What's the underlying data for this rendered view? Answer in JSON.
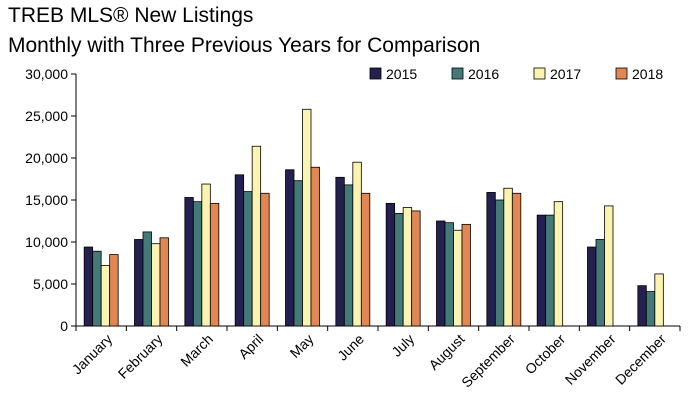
{
  "chart_data": {
    "type": "bar",
    "title": "TREB MLS® New Listings",
    "subtitle": "Monthly with Three Previous Years for Comparison",
    "xlabel": "",
    "ylabel": "",
    "ylim": [
      0,
      30000
    ],
    "yticks": [
      "0",
      "5,000",
      "10,000",
      "15,000",
      "20,000",
      "25,000",
      "30,000"
    ],
    "categories": [
      "January",
      "February",
      "March",
      "April",
      "May",
      "June",
      "July",
      "August",
      "September",
      "October",
      "November",
      "December"
    ],
    "series": [
      {
        "name": "2015",
        "color": "#24204f",
        "values": [
          9400,
          10300,
          15300,
          18000,
          18600,
          17700,
          14600,
          12500,
          15900,
          13200,
          9400,
          4800
        ]
      },
      {
        "name": "2016",
        "color": "#437a78",
        "values": [
          8900,
          11200,
          14800,
          16000,
          17300,
          16800,
          13400,
          12300,
          15000,
          13200,
          10300,
          4100
        ]
      },
      {
        "name": "2017",
        "color": "#fbf3b0",
        "values": [
          7200,
          9800,
          16900,
          21400,
          25800,
          19500,
          14100,
          11400,
          16400,
          14800,
          14300,
          6200
        ]
      },
      {
        "name": "2018",
        "color": "#e28653",
        "values": [
          8500,
          10500,
          14600,
          15800,
          18900,
          15800,
          13700,
          12100,
          15800,
          null,
          null,
          null
        ]
      }
    ],
    "legend": "top-right",
    "grid": false
  }
}
